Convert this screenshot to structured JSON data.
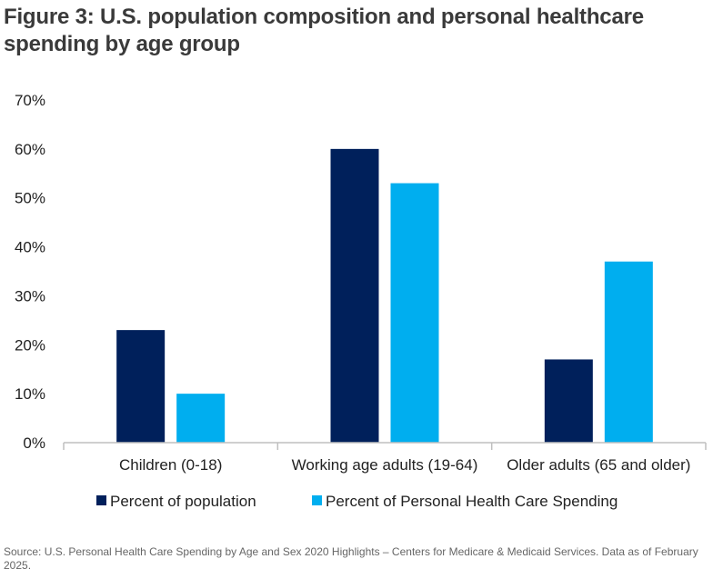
{
  "title": "Figure 3: U.S. population composition and personal healthcare spending by age group",
  "source": "Source: U.S. Personal Health Care Spending by Age and Sex 2020 Highlights – Centers for Medicare & Medicaid Services. Data as of February 2025.",
  "colors": {
    "population": "#00205b",
    "spending": "#00aeef",
    "axis": "#bfbfbf",
    "text": "#222222"
  },
  "chart_data": {
    "type": "bar",
    "title": "Figure 3: U.S. population composition and personal healthcare spending by age group",
    "xlabel": "",
    "ylabel": "",
    "ylim": [
      0,
      70
    ],
    "yticks": [
      0,
      10,
      20,
      30,
      40,
      50,
      60,
      70
    ],
    "ytick_labels": [
      "0%",
      "10%",
      "20%",
      "30%",
      "40%",
      "50%",
      "60%",
      "70%"
    ],
    "categories": [
      "Children (0-18)",
      "Working age adults (19-64)",
      "Older adults (65 and older)"
    ],
    "series": [
      {
        "name": "Percent of population",
        "values": [
          23,
          60,
          17
        ]
      },
      {
        "name": "Percent of Personal Health Care Spending",
        "values": [
          10,
          53,
          37
        ]
      }
    ],
    "legend_position": "bottom",
    "grid": false
  }
}
